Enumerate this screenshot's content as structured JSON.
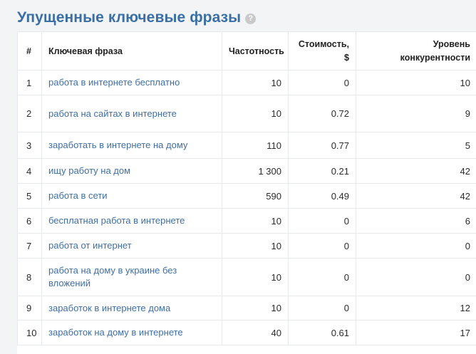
{
  "page": {
    "title": "Упущенные ключевые фразы",
    "help_icon": "?"
  },
  "table": {
    "headers": {
      "num": "#",
      "phrase": "Ключевая фраза",
      "frequency": "Частотность",
      "cost_line1": "Стоимость,",
      "cost_line2": "$",
      "competition_line1": "Уровень",
      "competition_line2": "конкурентности"
    },
    "rows": [
      {
        "num": "1",
        "phrase": "работа в интернете бесплатно",
        "frequency": "10",
        "cost": "0",
        "competition": "10"
      },
      {
        "num": "2",
        "phrase": "работа на сайтах в интернете",
        "frequency": "10",
        "cost": "0.72",
        "competition": "9"
      },
      {
        "num": "3",
        "phrase": "заработать в интернете на дому",
        "frequency": "110",
        "cost": "0.77",
        "competition": "5"
      },
      {
        "num": "4",
        "phrase": "ищу работу на дом",
        "frequency": "1 300",
        "cost": "0.21",
        "competition": "42"
      },
      {
        "num": "5",
        "phrase": "работа в сети",
        "frequency": "590",
        "cost": "0.49",
        "competition": "42"
      },
      {
        "num": "6",
        "phrase": "бесплатная работа в интернете",
        "frequency": "10",
        "cost": "0",
        "competition": "6"
      },
      {
        "num": "7",
        "phrase": "работа от интернет",
        "frequency": "10",
        "cost": "0",
        "competition": "0"
      },
      {
        "num": "8",
        "phrase": "работа на дому в украине без вложений",
        "frequency": "10",
        "cost": "0",
        "competition": "0"
      },
      {
        "num": "9",
        "phrase": "заработок в интернете дома",
        "frequency": "10",
        "cost": "0",
        "competition": "12"
      },
      {
        "num": "10",
        "phrase": "заработок на дому в интернете",
        "frequency": "40",
        "cost": "0.61",
        "competition": "17"
      }
    ]
  }
}
